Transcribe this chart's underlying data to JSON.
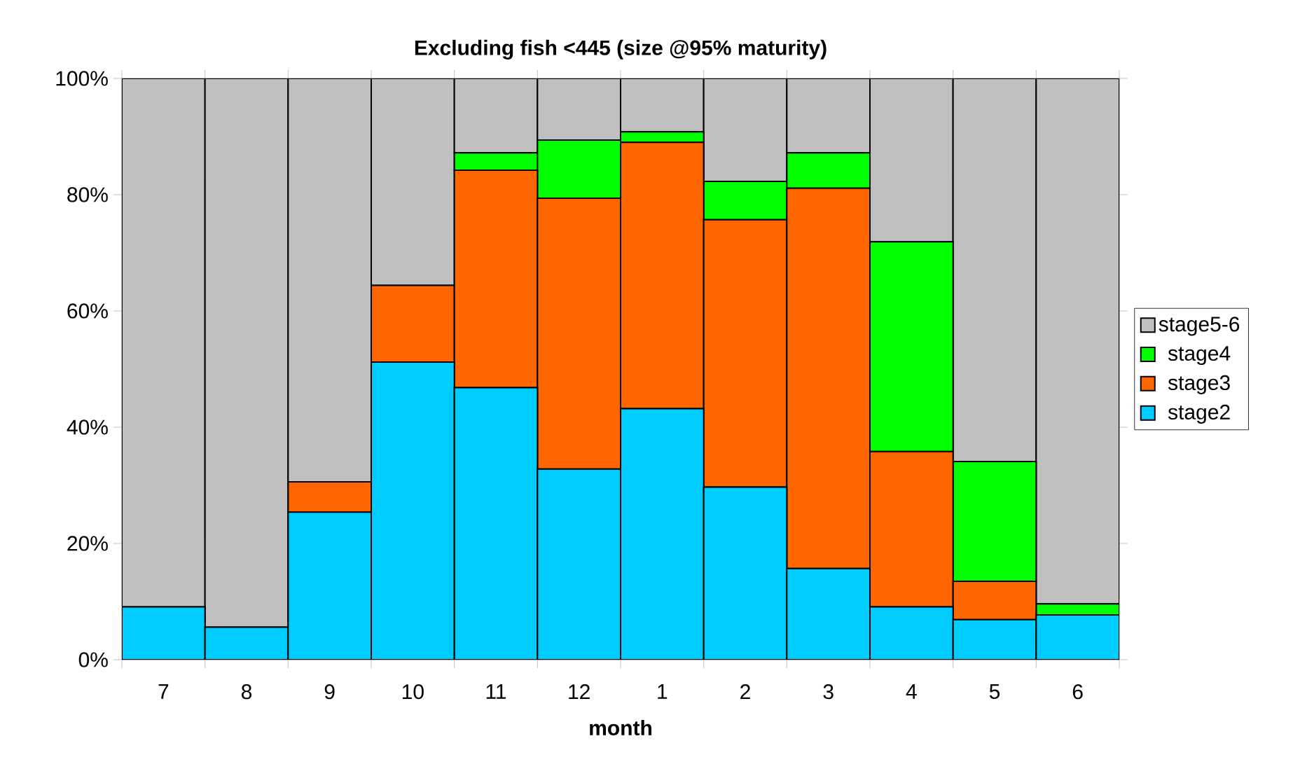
{
  "chart_data": {
    "type": "bar",
    "stacked": true,
    "title": "Excluding fish <445 (size @95% maturity)",
    "xlabel": "month",
    "categories": [
      "7",
      "8",
      "9",
      "10",
      "11",
      "12",
      "1",
      "2",
      "3",
      "4",
      "5",
      "6"
    ],
    "series": [
      {
        "name": "stage2",
        "color": "#00ccff",
        "values": [
          9.1,
          5.6,
          25.4,
          51.2,
          46.8,
          32.8,
          43.2,
          29.7,
          15.7,
          9.1,
          6.9,
          7.7
        ]
      },
      {
        "name": "stage3",
        "color": "#ff6600",
        "values": [
          0,
          0,
          5.2,
          13.2,
          37.4,
          46.6,
          45.8,
          46.0,
          65.4,
          26.7,
          6.6,
          0
        ]
      },
      {
        "name": "stage4",
        "color": "#00ff00",
        "values": [
          0,
          0,
          0,
          0,
          3.0,
          10.0,
          1.8,
          6.6,
          6.1,
          36.1,
          20.6,
          1.9
        ]
      },
      {
        "name": "stage5-6",
        "color": "#c0c0c0",
        "values": [
          90.9,
          94.4,
          69.4,
          35.6,
          12.8,
          10.6,
          9.2,
          17.7,
          12.8,
          28.1,
          65.9,
          90.4
        ]
      }
    ],
    "ylim": [
      0,
      100
    ],
    "yticks": [
      {
        "value": 0,
        "label": "0%"
      },
      {
        "value": 20,
        "label": "20%"
      },
      {
        "value": 40,
        "label": "40%"
      },
      {
        "value": 60,
        "label": "60%"
      },
      {
        "value": 80,
        "label": "80%"
      },
      {
        "value": 100,
        "label": "100%"
      }
    ],
    "legend": "right"
  }
}
